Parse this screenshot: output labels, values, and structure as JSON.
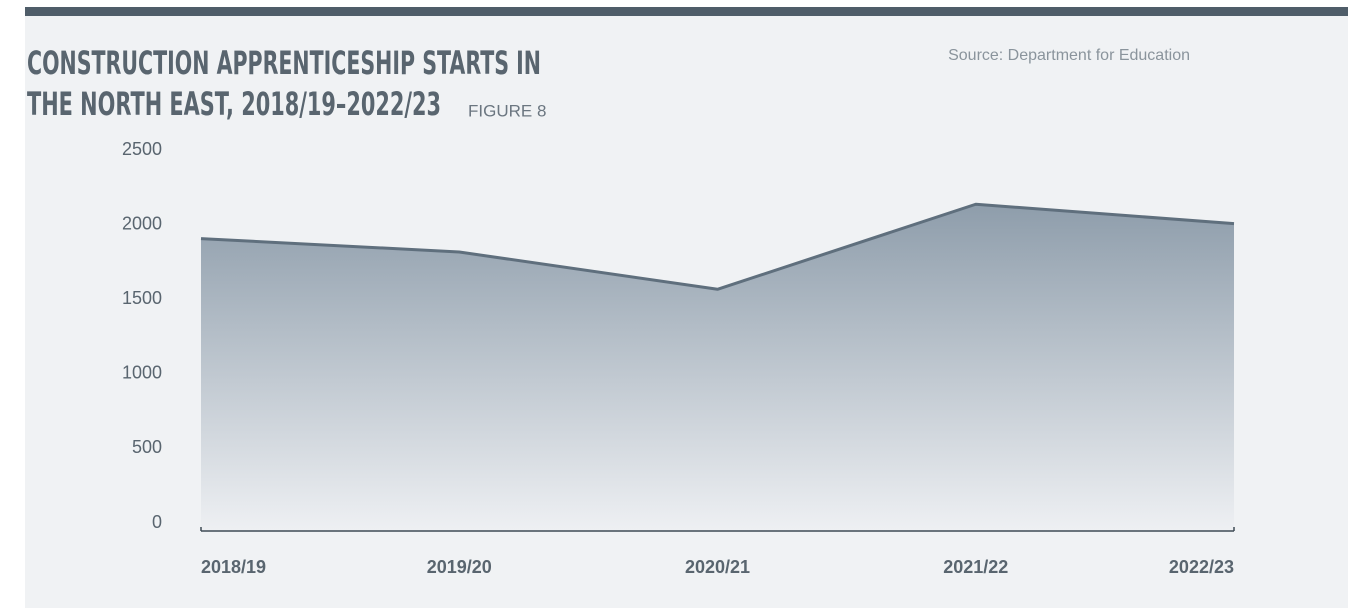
{
  "chart_data": {
    "type": "area",
    "title_lines": [
      "CONSTRUCTION APPRENTICESHIP STARTS IN",
      "THE NORTH EAST, 2018/19–2022/23"
    ],
    "figure_label": "FIGURE 8",
    "source": "Source: Department for Education",
    "categories": [
      "2018/19",
      "2019/20",
      "2020/21",
      "2021/22",
      "2022/23"
    ],
    "values": [
      1960,
      1870,
      1620,
      2190,
      2060
    ],
    "color": "#5f6f7d",
    "ylim": [
      0,
      2500
    ],
    "yticks": [
      0,
      500,
      1000,
      1500,
      2000,
      2500
    ],
    "grid": false
  }
}
